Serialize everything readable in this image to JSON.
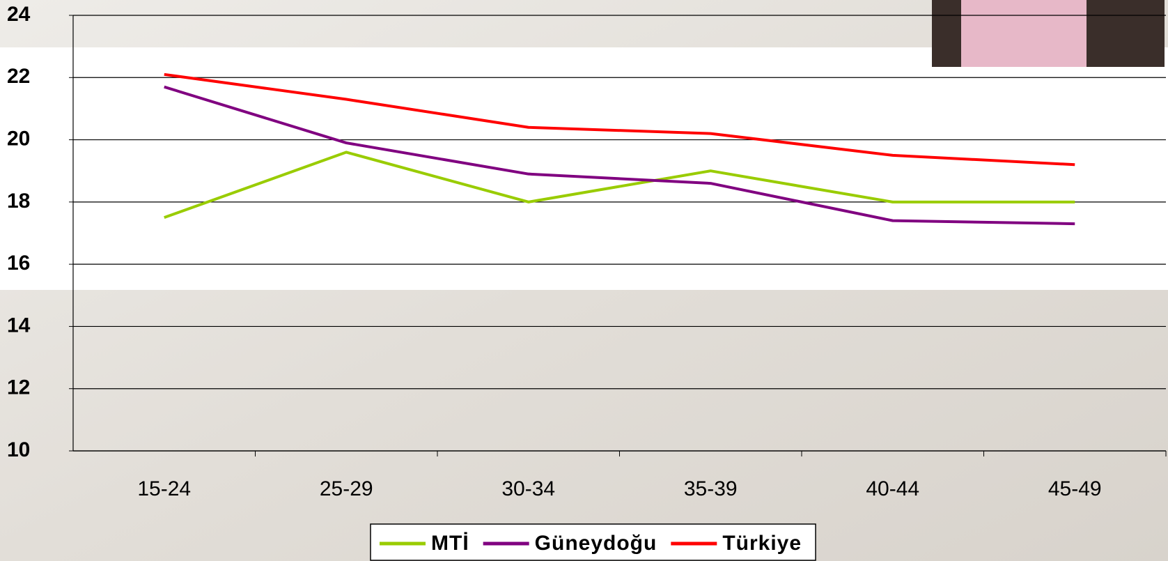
{
  "chart_data": {
    "type": "line",
    "categories": [
      "15-24",
      "25-29",
      "30-34",
      "35-39",
      "40-44",
      "45-49"
    ],
    "series": [
      {
        "name": "MTİ",
        "color": "#99cc00",
        "values": [
          17.5,
          19.6,
          18.0,
          19.0,
          18.0,
          18.0
        ]
      },
      {
        "name": "Güneydoğu",
        "color": "#800080",
        "values": [
          21.7,
          19.9,
          18.9,
          18.6,
          17.4,
          17.3
        ]
      },
      {
        "name": "Türkiye",
        "color": "#ff0000",
        "values": [
          22.1,
          21.3,
          20.4,
          20.2,
          19.5,
          19.2
        ]
      }
    ],
    "ylim": [
      10,
      24
    ],
    "yticks": [
      10,
      12,
      14,
      16,
      18,
      20,
      22,
      24
    ],
    "grid": true,
    "legend": "bottom"
  }
}
